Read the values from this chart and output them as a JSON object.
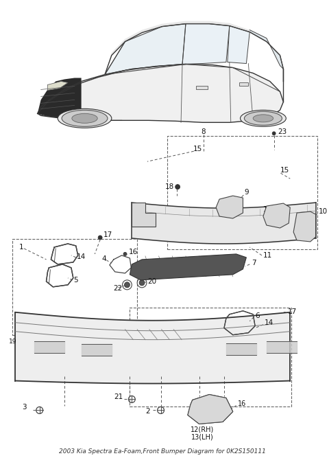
{
  "title": "2003 Kia Spectra Ea-Foam,Front Bumper Diagram for 0K2S150111",
  "bg_color": "#ffffff",
  "line_color": "#222222",
  "label_fontsize": 7.5,
  "fig_w": 4.8,
  "fig_h": 6.67,
  "dpi": 100
}
